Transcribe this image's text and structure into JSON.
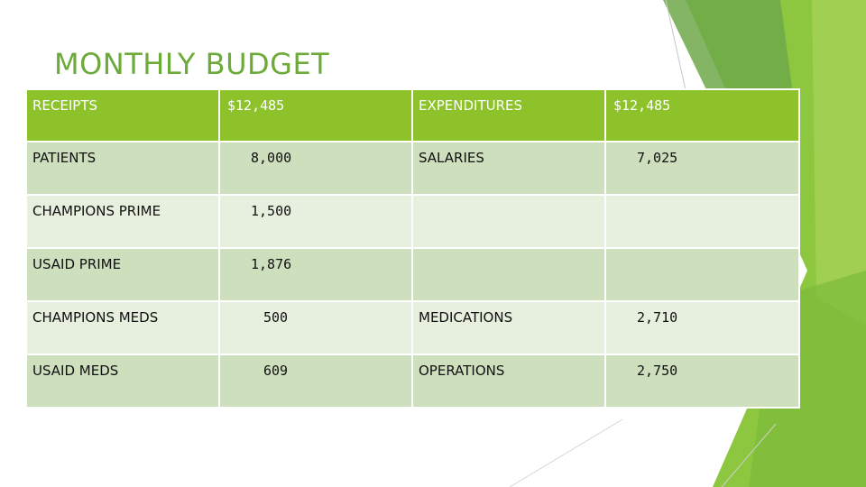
{
  "slide": {
    "title": "MONTHLY BUDGET",
    "colors": {
      "accent": "#8dc22b",
      "title": "#6cab3a",
      "row_dark": "#cedfbe",
      "row_light": "#e7efdf"
    }
  },
  "table": {
    "header": {
      "receipts_label": "RECEIPTS",
      "receipts_total": "$12,485",
      "expenditures_label": "EXPENDITURES",
      "expenditures_total": "$12,485"
    },
    "rows": [
      {
        "receipt": "PATIENTS",
        "receipt_amount": "8,000",
        "expenditure": "SALARIES",
        "expenditure_amount": "7,025"
      },
      {
        "receipt": "CHAMPIONS PRIME",
        "receipt_amount": "1,500",
        "expenditure": "",
        "expenditure_amount": ""
      },
      {
        "receipt": "USAID PRIME",
        "receipt_amount": "1,876",
        "expenditure": "",
        "expenditure_amount": ""
      },
      {
        "receipt": "CHAMPIONS MEDS",
        "receipt_amount": "500",
        "expenditure": "MEDICATIONS",
        "expenditure_amount": "2,710"
      },
      {
        "receipt": "USAID MEDS",
        "receipt_amount": "609",
        "expenditure": "OPERATIONS",
        "expenditure_amount": "2,750"
      }
    ]
  }
}
